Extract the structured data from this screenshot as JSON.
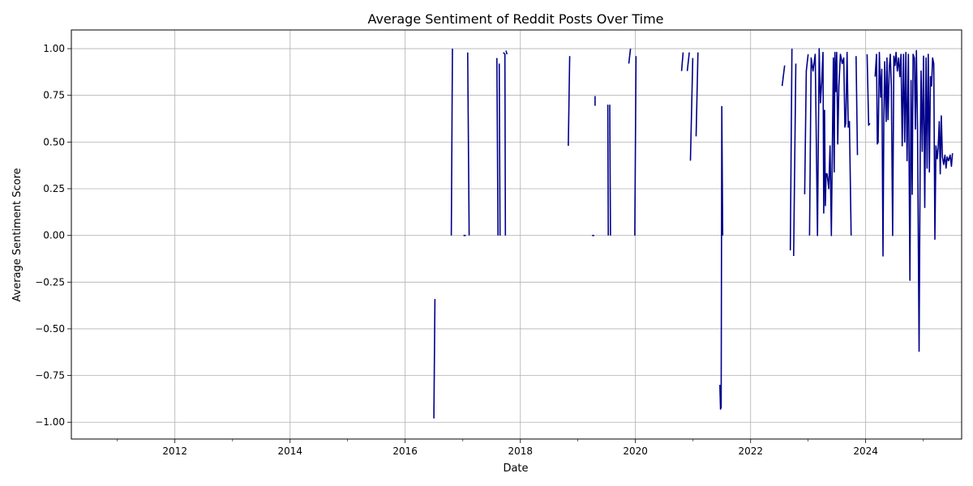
{
  "chart_data": {
    "type": "line",
    "title": "Average Sentiment of Reddit Posts Over Time",
    "xlabel": "Date",
    "ylabel": "Average Sentiment Score",
    "x_range": [
      "2010-03-15",
      "2025-09-01"
    ],
    "y_range": [
      -1.09,
      1.1
    ],
    "grid": true,
    "line_color": "#00008b",
    "x_ticks": [
      {
        "date": "2012-01-01",
        "label": "2012"
      },
      {
        "date": "2014-01-01",
        "label": "2014"
      },
      {
        "date": "2016-01-01",
        "label": "2016"
      },
      {
        "date": "2018-01-01",
        "label": "2018"
      },
      {
        "date": "2020-01-01",
        "label": "2020"
      },
      {
        "date": "2022-01-01",
        "label": "2022"
      },
      {
        "date": "2024-01-01",
        "label": "2024"
      }
    ],
    "x_minor_ticks": [
      "2011-01-01",
      "2013-01-01",
      "2015-01-01",
      "2017-01-01",
      "2019-01-01",
      "2021-01-01",
      "2023-01-01",
      "2025-01-01"
    ],
    "y_ticks": [
      {
        "value": 1.0,
        "label": "1.00"
      },
      {
        "value": 0.75,
        "label": "0.75"
      },
      {
        "value": 0.5,
        "label": "0.50"
      },
      {
        "value": 0.25,
        "label": "0.25"
      },
      {
        "value": 0.0,
        "label": "0.00"
      },
      {
        "value": -0.25,
        "label": "−0.25"
      },
      {
        "value": -0.5,
        "label": "−0.50"
      },
      {
        "value": -0.75,
        "label": "−0.75"
      },
      {
        "value": -1.0,
        "label": "−1.00"
      }
    ],
    "segments": [
      [
        [
          "2016-07-01",
          -0.98
        ],
        [
          "2016-07-08",
          -0.34
        ]
      ],
      [
        [
          "2016-10-20",
          0.0
        ],
        [
          "2016-10-27",
          1.0
        ]
      ],
      [
        [
          "2017-01-05",
          0.0
        ],
        [
          "2017-01-20",
          0.0
        ]
      ],
      [
        [
          "2017-02-01",
          0.98
        ],
        [
          "2017-02-10",
          0.0
        ]
      ],
      [
        [
          "2017-08-05",
          0.95
        ],
        [
          "2017-08-12",
          0.0
        ]
      ],
      [
        [
          "2017-08-20",
          0.92
        ],
        [
          "2017-08-25",
          0.0
        ]
      ],
      [
        [
          "2017-09-15",
          0.98
        ],
        [
          "2017-09-25",
          0.97
        ],
        [
          "2017-09-28",
          0.0
        ]
      ],
      [
        [
          "2017-10-02",
          0.99
        ],
        [
          "2017-10-08",
          0.97
        ]
      ],
      [
        [
          "2018-11-01",
          0.48
        ],
        [
          "2018-11-10",
          0.96
        ]
      ],
      [
        [
          "2019-04-01",
          0.0
        ],
        [
          "2019-04-15",
          0.0
        ]
      ],
      [
        [
          "2019-04-20",
          0.72
        ]
      ],
      [
        [
          "2019-07-10",
          0.7
        ],
        [
          "2019-07-13",
          0.0
        ]
      ],
      [
        [
          "2019-07-22",
          0.7
        ],
        [
          "2019-07-27",
          0.0
        ]
      ],
      [
        [
          "2019-11-20",
          0.92
        ],
        [
          "2019-12-01",
          1.0
        ]
      ],
      [
        [
          "2019-12-28",
          0.0
        ],
        [
          "2020-01-05",
          0.96
        ]
      ],
      [
        [
          "2020-10-20",
          0.88
        ],
        [
          "2020-10-30",
          0.98
        ]
      ],
      [
        [
          "2020-11-25",
          0.88
        ],
        [
          "2020-12-08",
          0.98
        ]
      ],
      [
        [
          "2020-12-15",
          0.4
        ],
        [
          "2020-12-30",
          0.95
        ]
      ],
      [
        [
          "2021-01-20",
          0.53
        ],
        [
          "2021-02-01",
          0.98
        ]
      ],
      [
        [
          "2021-06-20",
          -0.8
        ],
        [
          "2021-06-24",
          -0.93
        ],
        [
          "2021-06-28",
          -0.92
        ],
        [
          "2021-07-02",
          0.69
        ],
        [
          "2021-07-08",
          0.0
        ]
      ],
      [
        [
          "2022-07-20",
          0.8
        ],
        [
          "2022-08-05",
          0.91
        ]
      ],
      [
        [
          "2022-09-10",
          -0.08
        ],
        [
          "2022-09-20",
          1.0
        ]
      ],
      [
        [
          "2022-10-01",
          -0.11
        ],
        [
          "2022-10-15",
          0.92
        ]
      ],
      [
        [
          "2022-12-10",
          0.22
        ],
        [
          "2022-12-20",
          0.88
        ],
        [
          "2023-01-01",
          0.97
        ]
      ],
      [
        [
          "2023-01-10",
          0.0
        ],
        [
          "2023-01-20",
          0.95
        ],
        [
          "2023-02-01",
          0.88
        ],
        [
          "2023-02-15",
          0.97
        ],
        [
          "2023-03-01",
          0.0
        ],
        [
          "2023-03-12",
          1.0
        ],
        [
          "2023-03-20",
          0.71
        ],
        [
          "2023-03-28",
          0.82
        ],
        [
          "2023-04-05",
          0.98
        ],
        [
          "2023-04-10",
          0.12
        ],
        [
          "2023-04-15",
          0.67
        ],
        [
          "2023-04-20",
          0.16
        ],
        [
          "2023-04-25",
          0.33
        ],
        [
          "2023-05-01",
          0.33
        ],
        [
          "2023-05-08",
          0.28
        ],
        [
          "2023-05-12",
          0.25
        ],
        [
          "2023-05-20",
          0.48
        ],
        [
          "2023-05-28",
          0.0
        ],
        [
          "2023-06-05",
          0.57
        ],
        [
          "2023-06-10",
          0.95
        ],
        [
          "2023-06-15",
          0.34
        ],
        [
          "2023-06-20",
          0.98
        ],
        [
          "2023-06-25",
          0.77
        ],
        [
          "2023-07-01",
          0.98
        ],
        [
          "2023-07-08",
          0.49
        ],
        [
          "2023-07-15",
          0.8
        ],
        [
          "2023-07-25",
          0.97
        ],
        [
          "2023-08-05",
          0.92
        ],
        [
          "2023-08-15",
          0.95
        ],
        [
          "2023-08-22",
          0.58
        ],
        [
          "2023-08-28",
          0.6
        ],
        [
          "2023-09-05",
          0.98
        ],
        [
          "2023-09-12",
          0.58
        ],
        [
          "2023-09-20",
          0.61
        ],
        [
          "2023-10-01",
          0.0
        ]
      ],
      [
        [
          "2023-11-01",
          0.96
        ],
        [
          "2023-11-10",
          0.43
        ]
      ],
      [
        [
          "2024-01-10",
          0.97
        ],
        [
          "2024-01-20",
          0.59
        ],
        [
          "2024-01-28",
          0.6
        ]
      ],
      [
        [
          "2024-03-01",
          0.85
        ],
        [
          "2024-03-10",
          0.97
        ],
        [
          "2024-03-15",
          0.49
        ],
        [
          "2024-03-20",
          0.5
        ],
        [
          "2024-03-28",
          0.98
        ],
        [
          "2024-04-05",
          0.74
        ],
        [
          "2024-04-12",
          0.89
        ],
        [
          "2024-04-20",
          -0.11
        ],
        [
          "2024-04-25",
          0.6
        ],
        [
          "2024-05-01",
          0.93
        ],
        [
          "2024-05-10",
          0.61
        ],
        [
          "2024-05-15",
          0.95
        ],
        [
          "2024-05-22",
          0.62
        ],
        [
          "2024-05-30",
          0.9
        ],
        [
          "2024-06-05",
          0.97
        ],
        [
          "2024-06-12",
          0.8
        ],
        [
          "2024-06-20",
          0.0
        ],
        [
          "2024-06-28",
          0.96
        ],
        [
          "2024-07-05",
          0.91
        ],
        [
          "2024-07-12",
          0.98
        ],
        [
          "2024-07-20",
          0.88
        ],
        [
          "2024-07-28",
          0.95
        ],
        [
          "2024-08-05",
          0.85
        ],
        [
          "2024-08-12",
          0.97
        ],
        [
          "2024-08-20",
          0.48
        ],
        [
          "2024-08-28",
          0.97
        ],
        [
          "2024-09-05",
          0.5
        ],
        [
          "2024-09-12",
          0.98
        ],
        [
          "2024-09-20",
          0.4
        ],
        [
          "2024-09-28",
          0.97
        ],
        [
          "2024-10-08",
          -0.24
        ],
        [
          "2024-10-15",
          0.83
        ],
        [
          "2024-10-22",
          0.22
        ],
        [
          "2024-10-28",
          0.97
        ],
        [
          "2024-11-05",
          0.95
        ],
        [
          "2024-11-12",
          0.57
        ],
        [
          "2024-11-18",
          0.99
        ],
        [
          "2024-11-25",
          0.57
        ],
        [
          "2024-12-05",
          -0.62
        ],
        [
          "2024-12-12",
          0.46
        ],
        [
          "2024-12-18",
          0.88
        ],
        [
          "2024-12-25",
          0.45
        ],
        [
          "2025-01-02",
          0.96
        ],
        [
          "2025-01-10",
          0.15
        ],
        [
          "2025-01-18",
          0.95
        ],
        [
          "2025-01-25",
          0.36
        ],
        [
          "2025-02-01",
          0.97
        ],
        [
          "2025-02-08",
          0.34
        ],
        [
          "2025-02-15",
          0.85
        ],
        [
          "2025-02-22",
          0.8
        ],
        [
          "2025-03-01",
          0.95
        ],
        [
          "2025-03-08",
          0.92
        ],
        [
          "2025-03-15",
          -0.02
        ],
        [
          "2025-03-22",
          0.48
        ],
        [
          "2025-03-30",
          0.41
        ],
        [
          "2025-04-05",
          0.47
        ],
        [
          "2025-04-12",
          0.61
        ],
        [
          "2025-04-18",
          0.33
        ],
        [
          "2025-04-25",
          0.64
        ],
        [
          "2025-05-02",
          0.42
        ],
        [
          "2025-05-10",
          0.38
        ],
        [
          "2025-05-18",
          0.43
        ],
        [
          "2025-05-25",
          0.36
        ],
        [
          "2025-06-01",
          0.42
        ],
        [
          "2025-06-10",
          0.4
        ],
        [
          "2025-06-20",
          0.43
        ],
        [
          "2025-06-28",
          0.37
        ],
        [
          "2025-07-05",
          0.44
        ]
      ]
    ]
  }
}
